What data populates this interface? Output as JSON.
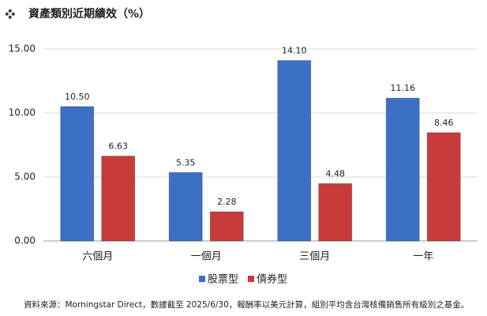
{
  "chart_data": {
    "type": "bar",
    "title": "資產類別近期績效（%）",
    "categories": [
      "六個月",
      "一個月",
      "三個月",
      "一年"
    ],
    "series": [
      {
        "name": "股票型",
        "color": "#3c70c4",
        "values": [
          10.5,
          5.35,
          14.1,
          11.16
        ],
        "value_labels": [
          "10.50",
          "5.35",
          "14.10",
          "11.16"
        ]
      },
      {
        "name": "債券型",
        "color": "#c83b3b",
        "values": [
          6.63,
          2.28,
          4.48,
          8.46
        ],
        "value_labels": [
          "6.63",
          "2.28",
          "4.48",
          "8.46"
        ]
      }
    ],
    "ylim": [
      0,
      15
    ],
    "yticks": [
      {
        "value": 0,
        "label": "0.00"
      },
      {
        "value": 5,
        "label": "5.00"
      },
      {
        "value": 10,
        "label": "10.00"
      },
      {
        "value": 15,
        "label": "15.00"
      }
    ],
    "grid": true,
    "legend": "bottom",
    "note": "資料來源：Morningstar Direct，數據截至 2025/6/30，報酬率以美元計算，組別平均含台灣核備銷售所有級別之基金。"
  }
}
